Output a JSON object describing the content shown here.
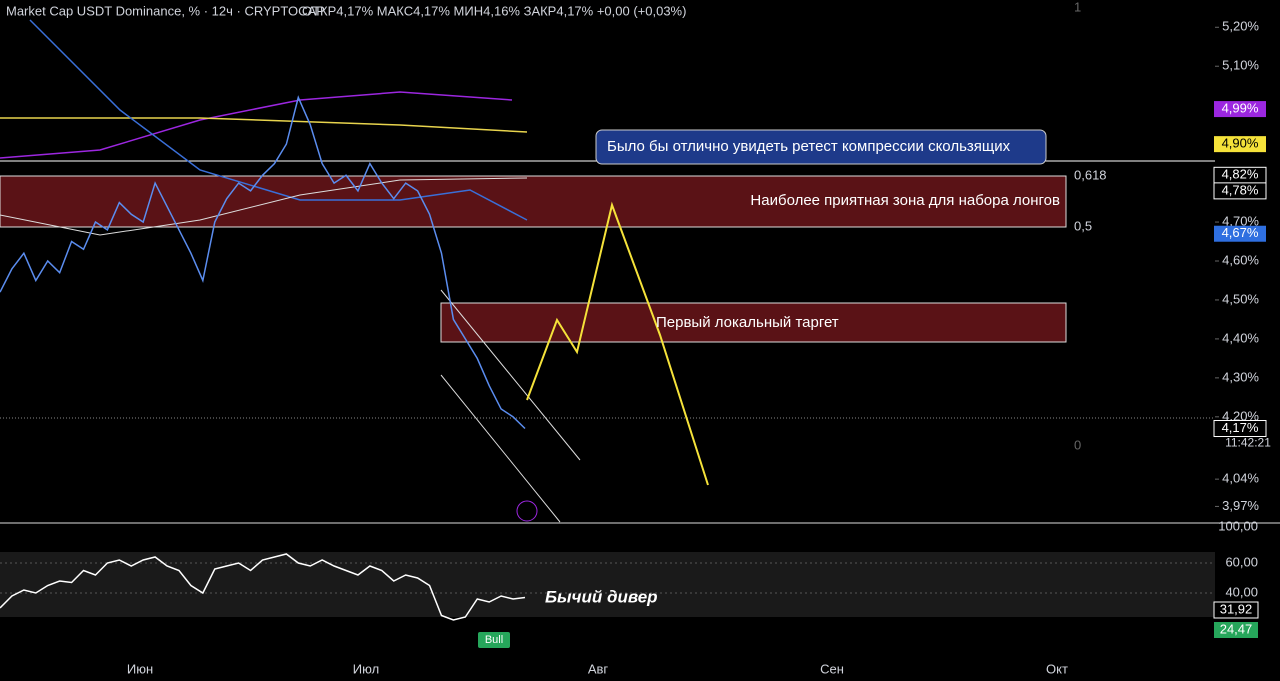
{
  "header": {
    "title": "Market Cap USDT Dominance, % · 12ч · CRYPTOCAP",
    "stats": "ОТКР4,17%  МАКС4,17%  МИН4,16%  ЗАКР4,17%  +0,00 (+0,03%)"
  },
  "chart_data": {
    "type": "line",
    "color": "#5b8def",
    "ylim": [
      3.93,
      5.27
    ],
    "yticks": [
      {
        "value": 5.2,
        "label": "5,20%"
      },
      {
        "value": 5.1,
        "label": "5,10%"
      },
      {
        "value": 4.7,
        "label": "4,70%"
      },
      {
        "value": 4.6,
        "label": "4,60%"
      },
      {
        "value": 4.5,
        "label": "4,50%"
      },
      {
        "value": 4.4,
        "label": "4,40%"
      },
      {
        "value": 4.3,
        "label": "4,30%"
      },
      {
        "value": 4.2,
        "label": "4,20%"
      },
      {
        "value": 4.04,
        "label": "4,04%"
      },
      {
        "value": 3.97,
        "label": "3,97%"
      }
    ],
    "price_labels": [
      {
        "value": 4.99,
        "label": "4,99%",
        "color": "#9c27e0"
      },
      {
        "value": 4.9,
        "label": "4,90%",
        "color": "#f5e23a"
      },
      {
        "value": 4.82,
        "label": "4,82%",
        "color": "#000000"
      },
      {
        "value": 4.78,
        "label": "4,78%",
        "color": "#000000"
      },
      {
        "value": 4.67,
        "label": "4,67%",
        "color": "#2f6fe0"
      },
      {
        "value": 4.17,
        "label": "4,17%",
        "color": "#000000"
      }
    ],
    "countdown": "11:42:21",
    "series": [
      {
        "name": "Close",
        "values": [
          4.52,
          4.58,
          4.62,
          4.55,
          4.6,
          4.57,
          4.65,
          4.63,
          4.7,
          4.68,
          4.75,
          4.72,
          4.7,
          4.8,
          4.74,
          4.68,
          4.62,
          4.55,
          4.7,
          4.76,
          4.8,
          4.78,
          4.82,
          4.85,
          4.9,
          5.02,
          4.95,
          4.85,
          4.8,
          4.82,
          4.78,
          4.85,
          4.8,
          4.76,
          4.8,
          4.78,
          4.72,
          4.62,
          4.45,
          4.4,
          4.35,
          4.28,
          4.22,
          4.2,
          4.17
        ]
      }
    ],
    "rsi": {
      "ylim": [
        0,
        100
      ],
      "yticks": [
        {
          "value": 60,
          "label": "60,00"
        },
        {
          "value": 40,
          "label": "40,00"
        }
      ],
      "top_label": "100,00",
      "current": "31,92",
      "ma": "24,47",
      "values": [
        30,
        38,
        42,
        40,
        45,
        48,
        47,
        55,
        52,
        60,
        62,
        58,
        62,
        64,
        58,
        55,
        45,
        40,
        56,
        58,
        60,
        55,
        62,
        64,
        66,
        60,
        58,
        62,
        58,
        55,
        52,
        58,
        55,
        48,
        52,
        50,
        45,
        25,
        22,
        24,
        36,
        34,
        38,
        36,
        37
      ]
    },
    "x_labels": [
      "Июн",
      "Июл",
      "Авг",
      "Сен",
      "Окт"
    ]
  },
  "annotations": {
    "callout": "Было бы отлично увидеть ретест компрессии скользящих",
    "zone_top": "Наиболее приятная зона для набора лонгов",
    "zone_bottom": "Первый локальный таргет",
    "fib_618": "0,618",
    "fib_5": "0,5",
    "fib_0": "0",
    "fib_1": "1",
    "divergence": "Бычий дивер",
    "bull": "Bull"
  }
}
